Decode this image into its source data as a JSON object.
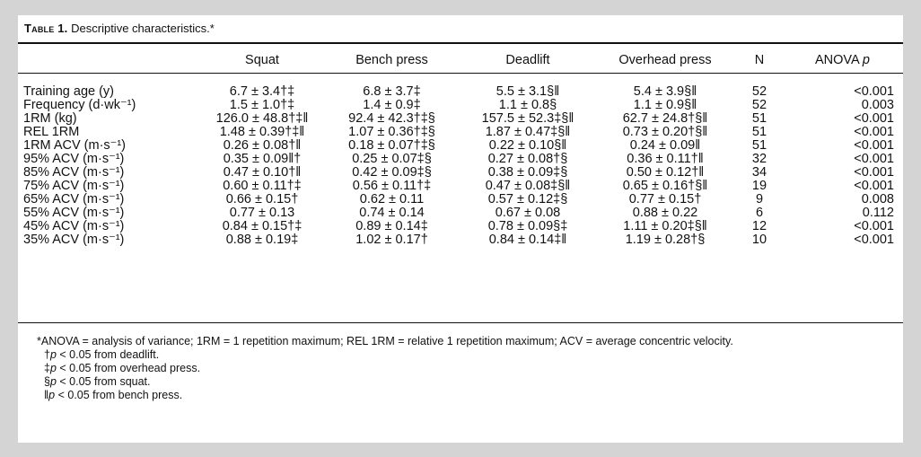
{
  "caption": {
    "label": "Table 1.",
    "title": "Descriptive characteristics.*"
  },
  "columns": {
    "label": "",
    "squat": "Squat",
    "bench": "Bench press",
    "deadlift": "Deadlift",
    "overhead": "Overhead press",
    "n": "N",
    "anova": "ANOVA p"
  },
  "rows": [
    {
      "label": "Training age (y)",
      "squat": "6.7 ± 3.4†‡",
      "bench": "6.8 ± 3.7‡",
      "deadlift": "5.5 ± 3.1§‖",
      "overhead": "5.4 ± 3.9§‖",
      "n": "52",
      "p": "<0.001"
    },
    {
      "label": "Frequency (d·wk⁻¹)",
      "squat": "1.5 ± 1.0†‡",
      "bench": "1.4 ± 0.9‡",
      "deadlift": "1.1 ± 0.8§",
      "overhead": "1.1 ± 0.9§‖",
      "n": "52",
      "p": "0.003"
    },
    {
      "label": "1RM (kg)",
      "squat": "126.0 ± 48.8†‡‖",
      "bench": "92.4 ± 42.3†‡§",
      "deadlift": "157.5 ± 52.3‡§‖",
      "overhead": "62.7 ± 24.8†§‖",
      "n": "51",
      "p": "<0.001"
    },
    {
      "label": "REL 1RM",
      "squat": "1.48 ± 0.39†‡‖",
      "bench": "1.07 ± 0.36†‡§",
      "deadlift": "1.87 ± 0.47‡§‖",
      "overhead": "0.73 ± 0.20†§‖",
      "n": "51",
      "p": "<0.001"
    },
    {
      "label": "1RM ACV (m·s⁻¹)",
      "squat": "0.26 ± 0.08†‖",
      "bench": "0.18 ± 0.07†‡§",
      "deadlift": "0.22 ± 0.10§‖",
      "overhead": "0.24 ± 0.09‖",
      "n": "51",
      "p": "<0.001"
    },
    {
      "label": "95% ACV (m·s⁻¹)",
      "squat": "0.35 ± 0.09‖†",
      "bench": "0.25 ± 0.07‡§",
      "deadlift": "0.27 ± 0.08†§",
      "overhead": "0.36 ± 0.11†‖",
      "n": "32",
      "p": "<0.001"
    },
    {
      "label": "85% ACV (m·s⁻¹)",
      "squat": "0.47 ± 0.10†‖",
      "bench": "0.42 ± 0.09‡§",
      "deadlift": "0.38 ± 0.09‡§",
      "overhead": "0.50 ± 0.12†‖",
      "n": "34",
      "p": "<0.001"
    },
    {
      "label": "75% ACV (m·s⁻¹)",
      "squat": "0.60 ± 0.11†‡",
      "bench": "0.56 ± 0.11†‡",
      "deadlift": "0.47 ± 0.08‡§‖",
      "overhead": "0.65 ± 0.16†§‖",
      "n": "19",
      "p": "<0.001"
    },
    {
      "label": "65% ACV (m·s⁻¹)",
      "squat": "0.66 ± 0.15†",
      "bench": "0.62 ± 0.11",
      "deadlift": "0.57 ± 0.12‡§",
      "overhead": "0.77 ± 0.15†",
      "n": "9",
      "p": "0.008"
    },
    {
      "label": "55% ACV (m·s⁻¹)",
      "squat": "0.77 ± 0.13",
      "bench": "0.74 ± 0.14",
      "deadlift": "0.67 ± 0.08",
      "overhead": "0.88 ± 0.22",
      "n": "6",
      "p": "0.112"
    },
    {
      "label": "45% ACV (m·s⁻¹)",
      "squat": "0.84 ± 0.15†‡",
      "bench": "0.89 ± 0.14‡",
      "deadlift": "0.78 ± 0.09§‡",
      "overhead": "1.11 ± 0.20‡§‖",
      "n": "12",
      "p": "<0.001"
    },
    {
      "label": "35% ACV (m·s⁻¹)",
      "squat": "0.88 ± 0.19‡",
      "bench": "1.02 ± 0.17†",
      "deadlift": "0.84 ± 0.14‡‖",
      "overhead": "1.19 ± 0.28†§",
      "n": "10",
      "p": "<0.001"
    }
  ],
  "notes": {
    "main": "*ANOVA = analysis of variance; 1RM = 1 repetition maximum; REL 1RM = relative 1 repetition maximum; ACV = average concentric velocity.",
    "footnotes": [
      {
        "mark": "†",
        "text": "< 0.05 from deadlift."
      },
      {
        "mark": "‡",
        "text": "< 0.05 from overhead press."
      },
      {
        "mark": "§",
        "text": "< 0.05 from squat."
      },
      {
        "mark": "‖",
        "text": "< 0.05 from bench press."
      }
    ]
  }
}
